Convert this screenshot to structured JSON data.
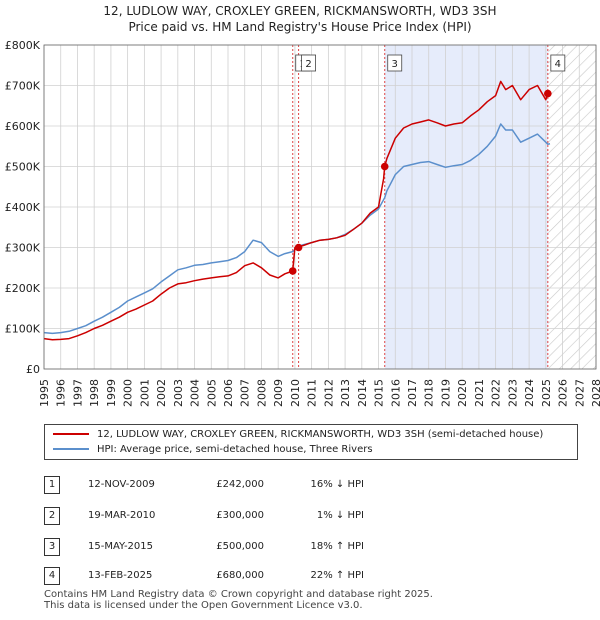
{
  "header": {
    "title": "12, LUDLOW WAY, CROXLEY GREEN, RICKMANSWORTH, WD3 3SH",
    "subtitle": "Price paid vs. HM Land Registry's House Price Index (HPI)"
  },
  "colors": {
    "property": "#cc0000",
    "hpi": "#5b8fcc",
    "marker_band": "#e6ecfb",
    "grid": "#d0d0d0"
  },
  "chart_data": {
    "type": "line",
    "xlim": [
      1995,
      2028
    ],
    "ylim": [
      0,
      800000
    ],
    "x_ticks": [
      1995,
      1996,
      1997,
      1998,
      1999,
      2000,
      2001,
      2002,
      2003,
      2004,
      2005,
      2006,
      2007,
      2008,
      2009,
      2010,
      2011,
      2012,
      2013,
      2014,
      2015,
      2016,
      2017,
      2018,
      2019,
      2020,
      2021,
      2022,
      2023,
      2024,
      2025,
      2026,
      2027,
      2028
    ],
    "y_ticks": [
      {
        "value": 0,
        "label": "£0"
      },
      {
        "value": 100000,
        "label": "£100K"
      },
      {
        "value": 200000,
        "label": "£200K"
      },
      {
        "value": 300000,
        "label": "£300K"
      },
      {
        "value": 400000,
        "label": "£400K"
      },
      {
        "value": 500000,
        "label": "£500K"
      },
      {
        "value": 600000,
        "label": "£600K"
      },
      {
        "value": 700000,
        "label": "£700K"
      },
      {
        "value": 800000,
        "label": "£800K"
      }
    ],
    "grid": true,
    "forecast_from": 2025.15,
    "shaded_period": [
      2015.37,
      2025.12
    ],
    "series": [
      {
        "name": "12, LUDLOW WAY, CROXLEY GREEN, RICKMANSWORTH, WD3 3SH (semi-detached house)",
        "color": "#cc0000",
        "x": [
          1995,
          1995.5,
          1996,
          1996.5,
          1997,
          1997.5,
          1998,
          1998.5,
          1999,
          1999.5,
          2000,
          2000.5,
          2001,
          2001.5,
          2002,
          2002.5,
          2003,
          2003.5,
          2004,
          2004.5,
          2005,
          2005.5,
          2006,
          2006.5,
          2007,
          2007.5,
          2008,
          2008.5,
          2009,
          2009.4,
          2009.87,
          2010.0,
          2010.2,
          2010.5,
          2011,
          2011.5,
          2012,
          2012.5,
          2013,
          2013.5,
          2014,
          2014.5,
          2015,
          2015.3,
          2015.37,
          2015.5,
          2016,
          2016.5,
          2017,
          2017.5,
          2018,
          2018.5,
          2019,
          2019.5,
          2020,
          2020.5,
          2021,
          2021.5,
          2022,
          2022.3,
          2022.6,
          2023,
          2023.5,
          2024,
          2024.5,
          2025.0,
          2025.12
        ],
        "values": [
          75000,
          72000,
          73000,
          75000,
          82000,
          90000,
          100000,
          108000,
          118000,
          128000,
          140000,
          148000,
          158000,
          168000,
          185000,
          200000,
          210000,
          213000,
          218000,
          222000,
          225000,
          228000,
          230000,
          238000,
          255000,
          262000,
          250000,
          232000,
          225000,
          235000,
          242000,
          300000,
          302000,
          305000,
          312000,
          318000,
          320000,
          324000,
          330000,
          345000,
          360000,
          385000,
          400000,
          470000,
          500000,
          520000,
          570000,
          595000,
          605000,
          610000,
          615000,
          608000,
          600000,
          605000,
          608000,
          625000,
          640000,
          660000,
          675000,
          710000,
          690000,
          700000,
          665000,
          690000,
          700000,
          665000,
          680000
        ]
      },
      {
        "name": "HPI: Average price, semi-detached house, Three Rivers",
        "color": "#5b8fcc",
        "x": [
          1995,
          1995.5,
          1996,
          1996.5,
          1997,
          1997.5,
          1998,
          1998.5,
          1999,
          1999.5,
          2000,
          2000.5,
          2001,
          2001.5,
          2002,
          2002.5,
          2003,
          2003.5,
          2004,
          2004.5,
          2005,
          2005.5,
          2006,
          2006.5,
          2007,
          2007.5,
          2008,
          2008.5,
          2009,
          2009.4,
          2009.87,
          2010.22,
          2010.5,
          2011,
          2011.5,
          2012,
          2012.5,
          2013,
          2013.5,
          2014,
          2014.5,
          2015,
          2015.37,
          2015.5,
          2016,
          2016.5,
          2017,
          2017.5,
          2018,
          2018.5,
          2019,
          2019.5,
          2020,
          2020.5,
          2021,
          2021.5,
          2022,
          2022.3,
          2022.6,
          2023,
          2023.5,
          2024,
          2024.5,
          2025.0,
          2025.12,
          2025.25
        ],
        "values": [
          90000,
          88000,
          90000,
          93000,
          100000,
          107000,
          118000,
          128000,
          140000,
          152000,
          168000,
          178000,
          188000,
          198000,
          215000,
          230000,
          245000,
          250000,
          256000,
          258000,
          262000,
          265000,
          268000,
          275000,
          290000,
          318000,
          312000,
          290000,
          278000,
          285000,
          290000,
          303000,
          307000,
          312000,
          318000,
          320000,
          324000,
          332000,
          345000,
          360000,
          380000,
          395000,
          423000,
          440000,
          480000,
          500000,
          505000,
          510000,
          512000,
          505000,
          498000,
          502000,
          505000,
          515000,
          530000,
          550000,
          575000,
          605000,
          590000,
          590000,
          560000,
          570000,
          580000,
          560000,
          555000,
          556000
        ]
      }
    ],
    "sales": [
      {
        "n": "1",
        "date": "12-NOV-2009",
        "x": 2009.87,
        "price": 242000,
        "price_label": "£242,000",
        "hpi": "16% ↓ HPI"
      },
      {
        "n": "2",
        "date": "19-MAR-2010",
        "x": 2010.22,
        "price": 300000,
        "price_label": "£300,000",
        "hpi": "1% ↓ HPI"
      },
      {
        "n": "3",
        "date": "15-MAY-2015",
        "x": 2015.37,
        "price": 500000,
        "price_label": "£500,000",
        "hpi": "18% ↑ HPI"
      },
      {
        "n": "4",
        "date": "13-FEB-2025",
        "x": 2025.12,
        "price": 680000,
        "price_label": "£680,000",
        "hpi": "22% ↑ HPI"
      }
    ]
  },
  "footer": {
    "line1": "Contains HM Land Registry data © Crown copyright and database right 2025.",
    "line2": "This data is licensed under the Open Government Licence v3.0."
  }
}
